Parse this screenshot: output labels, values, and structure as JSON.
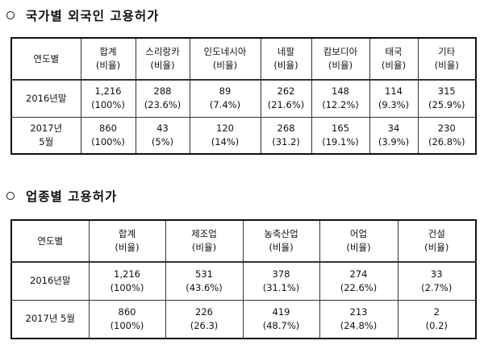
{
  "section1": {
    "title": "국가별 외국인 고용허가",
    "headers": [
      {
        "l1": "연도별",
        "l2": ""
      },
      {
        "l1": "합계",
        "l2": "(비율)"
      },
      {
        "l1": "스리랑카",
        "l2": "(비율)"
      },
      {
        "l1": "인도네시아",
        "l2": "(비율)"
      },
      {
        "l1": "네팔",
        "l2": "(비율)"
      },
      {
        "l1": "캄보디아",
        "l2": "(비율)"
      },
      {
        "l1": "태국",
        "l2": "(비율)"
      },
      {
        "l1": "기타",
        "l2": "(비율)"
      }
    ],
    "rows": [
      [
        {
          "l1": "2016년말",
          "l2": ""
        },
        {
          "l1": "1,216",
          "l2": "(100%)"
        },
        {
          "l1": "288",
          "l2": "(23.6%)"
        },
        {
          "l1": "89",
          "l2": "(7.4%)"
        },
        {
          "l1": "262",
          "l2": "(21.6%)"
        },
        {
          "l1": "148",
          "l2": "(12.2%)"
        },
        {
          "l1": "114",
          "l2": "(9.3%)"
        },
        {
          "l1": "315",
          "l2": "(25.9%)"
        }
      ],
      [
        {
          "l1": "2017년",
          "l2": "5월"
        },
        {
          "l1": "860",
          "l2": "(100%)"
        },
        {
          "l1": "43",
          "l2": "(5%)"
        },
        {
          "l1": "120",
          "l2": "(14%)"
        },
        {
          "l1": "268",
          "l2": "(31.2)"
        },
        {
          "l1": "165",
          "l2": "(19.1%)"
        },
        {
          "l1": "34",
          "l2": "(3.9%)"
        },
        {
          "l1": "230",
          "l2": "(26.8%)"
        }
      ]
    ]
  },
  "section2": {
    "title": "업종별 고용허가",
    "headers": [
      {
        "l1": "연도별",
        "l2": ""
      },
      {
        "l1": "합계",
        "l2": "(비율)"
      },
      {
        "l1": "제조업",
        "l2": "(비율)"
      },
      {
        "l1": "농축산업",
        "l2": "(비율)"
      },
      {
        "l1": "어업",
        "l2": "(비율)"
      },
      {
        "l1": "건설",
        "l2": "(비율)"
      }
    ],
    "rows": [
      [
        {
          "l1": "2016년말",
          "l2": ""
        },
        {
          "l1": "1,216",
          "l2": "(100%)"
        },
        {
          "l1": "531",
          "l2": "(43.6%)"
        },
        {
          "l1": "378",
          "l2": "(31.1%)"
        },
        {
          "l1": "274",
          "l2": "(22.6%)"
        },
        {
          "l1": "33",
          "l2": "(2.7%)"
        }
      ],
      [
        {
          "l1": "2017년 5월",
          "l2": ""
        },
        {
          "l1": "860",
          "l2": "(100%)"
        },
        {
          "l1": "226",
          "l2": "(26.3)"
        },
        {
          "l1": "419",
          "l2": "(48.7%)"
        },
        {
          "l1": "213",
          "l2": "(24.8%)"
        },
        {
          "l1": "2",
          "l2": "(0.2)"
        }
      ]
    ]
  }
}
